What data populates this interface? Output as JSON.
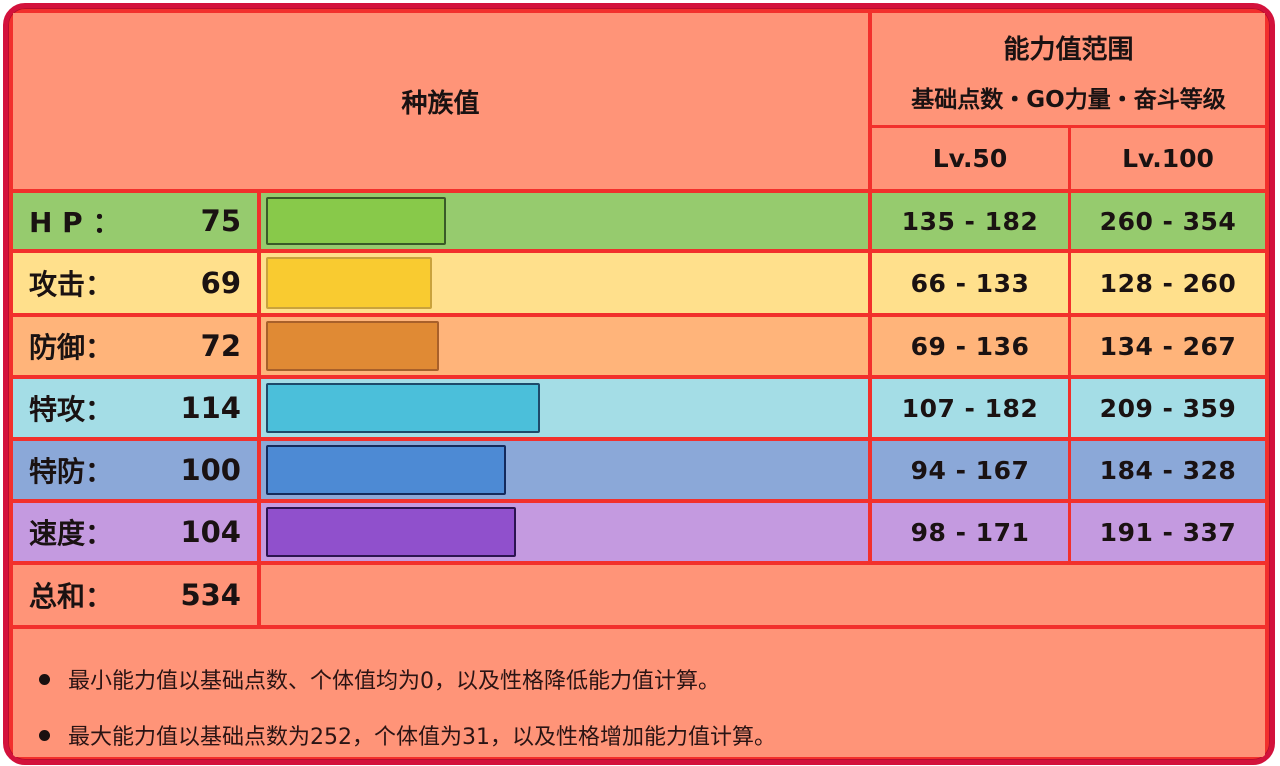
{
  "header": {
    "base_stats_title": "种族值",
    "range_title": "能力值范围",
    "range_subtitle": "基础点数・GO力量・奋斗等级",
    "lv50_label": "Lv.50",
    "lv100_label": "Lv.100"
  },
  "stats": [
    {
      "name": "H P ：",
      "value": "75",
      "lv50": "135 - 182",
      "lv100": "260 - 354",
      "row_color": "#96cb6e",
      "bar_color": "#88c94a",
      "bar_border": "#3a5a28"
    },
    {
      "name": "攻击：",
      "value": "69",
      "lv50": "66 - 133",
      "lv100": "128 - 260",
      "row_color": "#ffe08c",
      "bar_color": "#f9cb30",
      "bar_border": "#c9a23c"
    },
    {
      "name": "防御：",
      "value": "72",
      "lv50": "69 - 136",
      "lv100": "134 - 267",
      "row_color": "#ffb47a",
      "bar_color": "#e08a34",
      "bar_border": "#a8602a"
    },
    {
      "name": "特攻：",
      "value": "114",
      "lv50": "107 - 182",
      "lv100": "209 - 359",
      "row_color": "#a4dde6",
      "bar_color": "#4bbfda",
      "bar_border": "#1e4a6a"
    },
    {
      "name": "特防：",
      "value": "100",
      "lv50": "94 - 167",
      "lv100": "184 - 328",
      "row_color": "#8ba8d8",
      "bar_color": "#4d8ad4",
      "bar_border": "#142a5c"
    },
    {
      "name": "速度：",
      "value": "104",
      "lv50": "98 - 171",
      "lv100": "191 - 337",
      "row_color": "#c49ae0",
      "bar_color": "#9050cc",
      "bar_border": "#2c1450"
    }
  ],
  "total": {
    "name": "总和：",
    "value": "534"
  },
  "notes": [
    "最小能力值以基础点数、个体值均为0，以及性格降低能力值计算。",
    "最大能力值以基础点数为252，个体值为31，以及性格增加能力值计算。"
  ],
  "colors": {
    "frame": "#d3123c",
    "grid_line": "#f2302c",
    "header_bg": "#ff9478"
  },
  "chart_data": {
    "type": "bar",
    "orientation": "horizontal",
    "title": "种族值",
    "categories": [
      "HP",
      "攻击",
      "防御",
      "特攻",
      "特防",
      "速度"
    ],
    "values": [
      75,
      69,
      72,
      114,
      100,
      104
    ],
    "total": 534,
    "xlabel": "",
    "ylabel": "",
    "bar_scale_max": 255,
    "table": {
      "columns": [
        "Lv.50",
        "Lv.100"
      ],
      "rows": [
        [
          "135 - 182",
          "260 - 354"
        ],
        [
          "66 - 133",
          "128 - 260"
        ],
        [
          "69 - 136",
          "134 - 267"
        ],
        [
          "107 - 182",
          "209 - 359"
        ],
        [
          "94 - 167",
          "184 - 328"
        ],
        [
          "98 - 171",
          "191 - 337"
        ]
      ]
    }
  }
}
